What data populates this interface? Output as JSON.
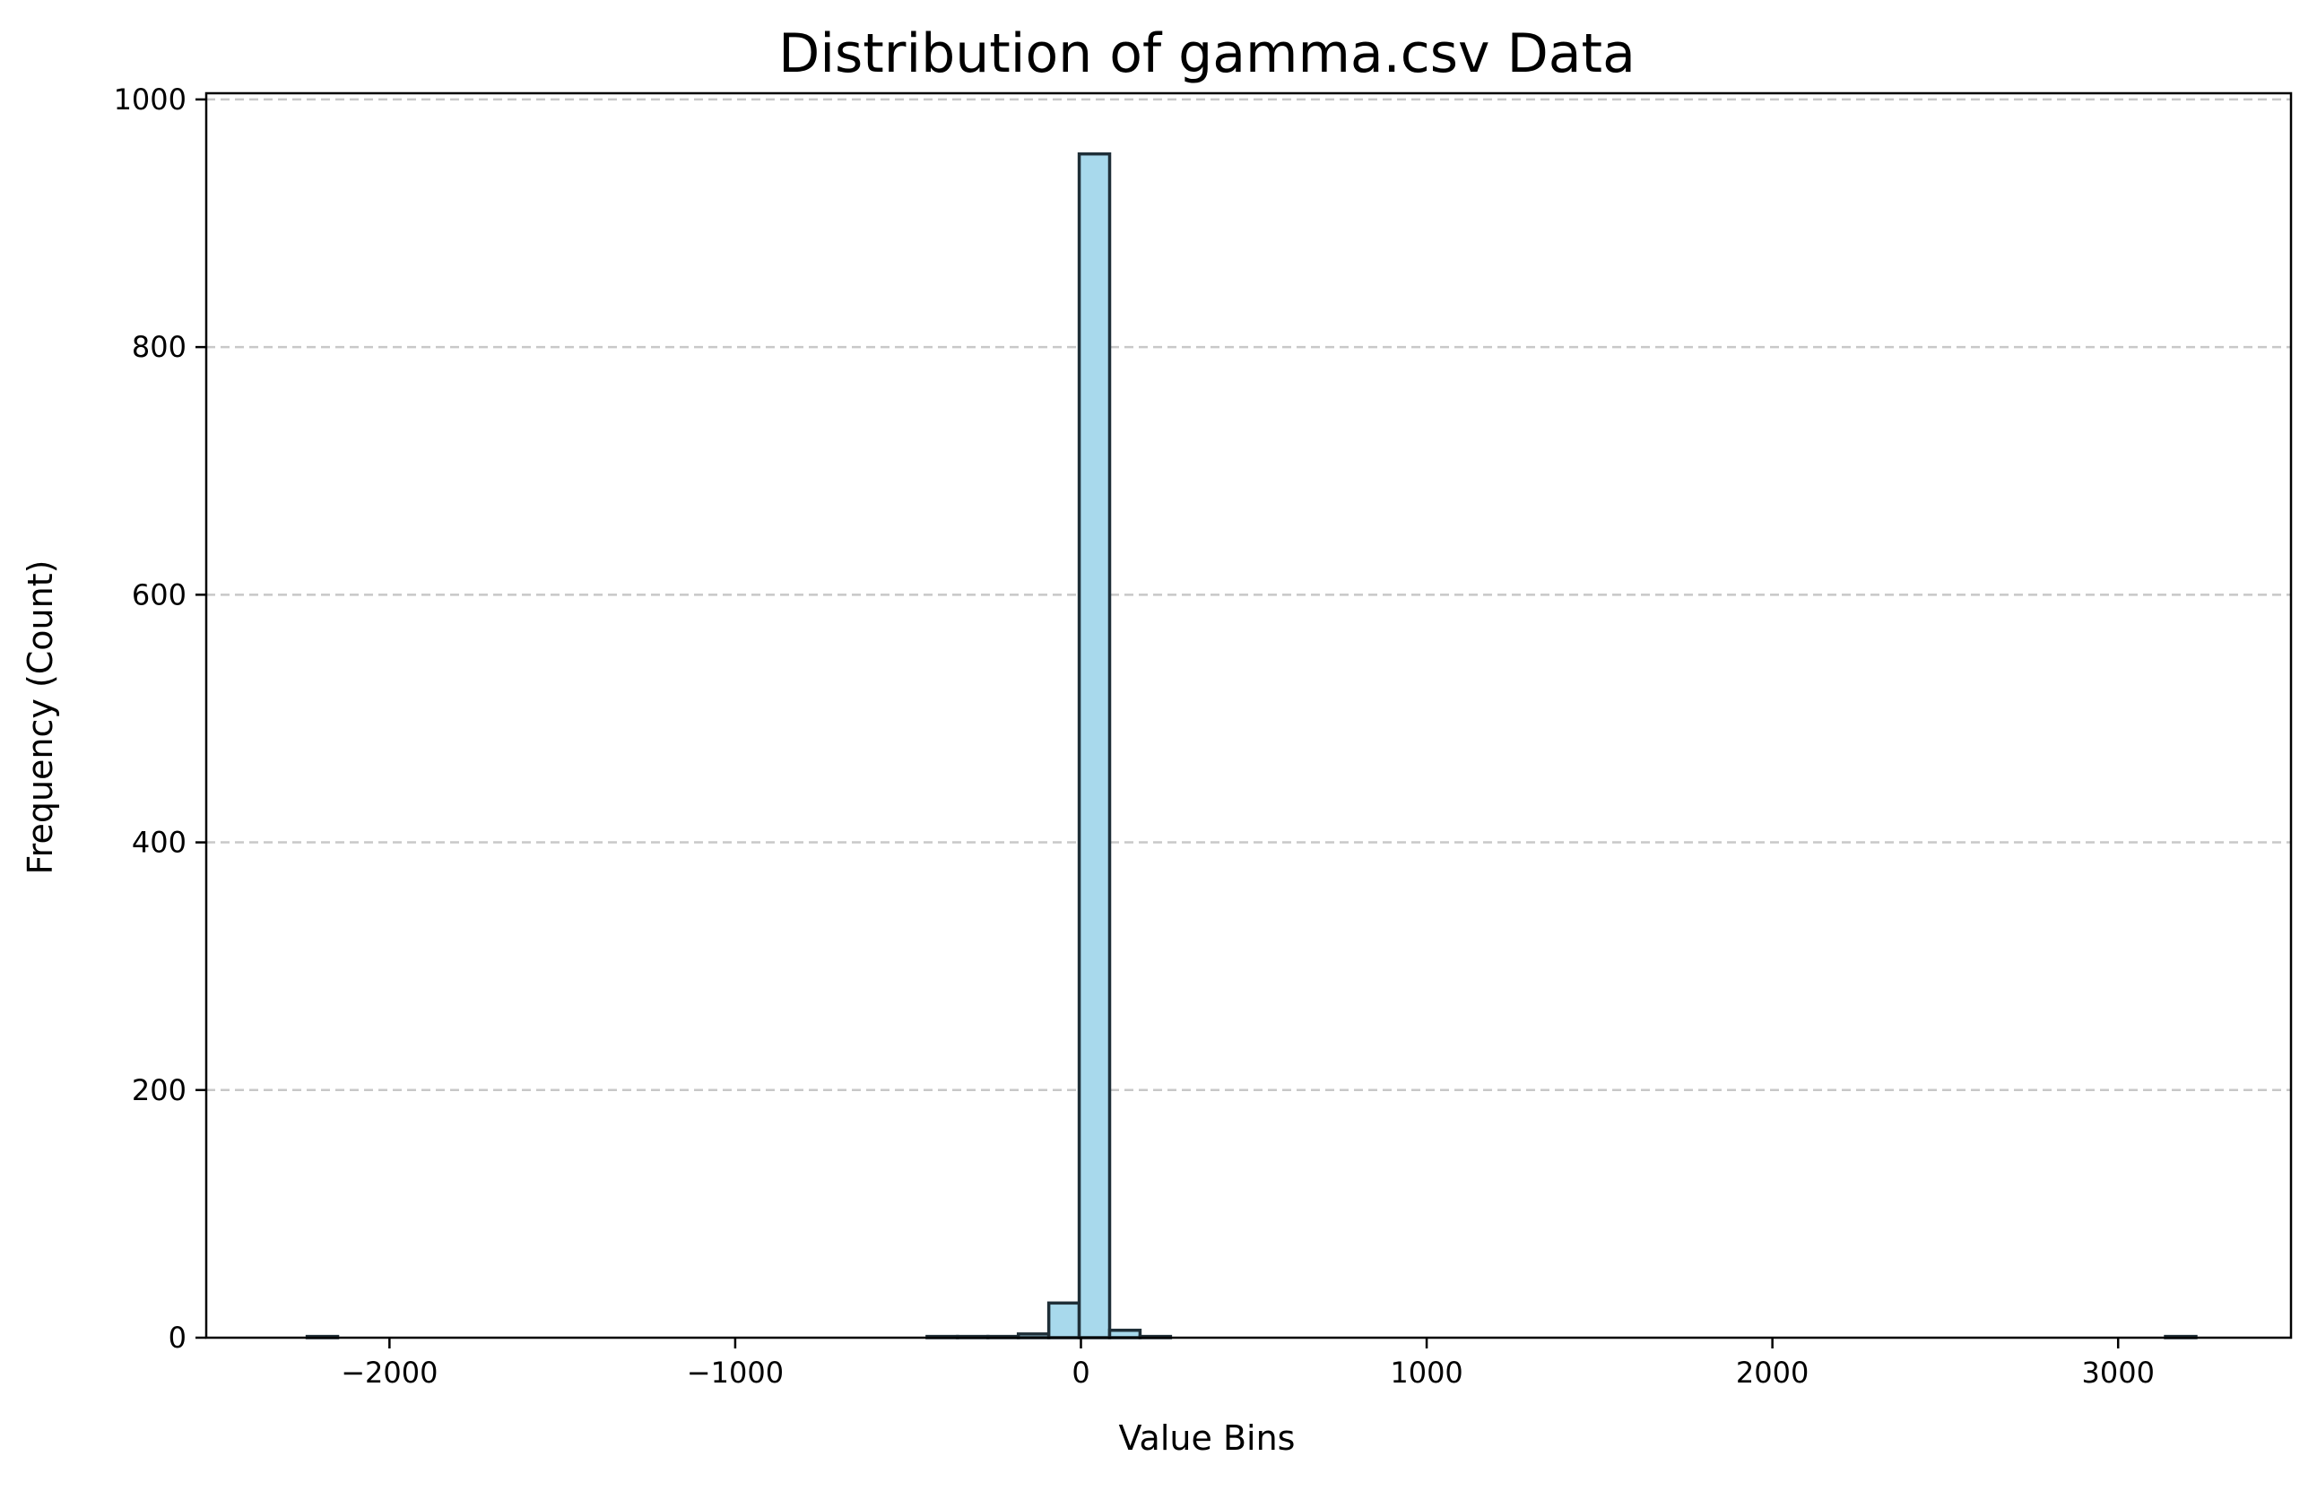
{
  "chart_data": {
    "type": "bar",
    "title": "Distribution of gamma.csv Data",
    "xlabel": "Value Bins",
    "ylabel": "Frequency (Count)",
    "xlim": [
      -2530,
      3500
    ],
    "ylim": [
      0,
      1005
    ],
    "x_ticks": [
      -2000,
      -1000,
      0,
      1000,
      2000,
      3000
    ],
    "x_tick_labels": [
      "−2000",
      "−1000",
      "0",
      "1000",
      "2000",
      "3000"
    ],
    "y_ticks": [
      0,
      200,
      400,
      600,
      800,
      1000
    ],
    "y_tick_labels": [
      "0",
      "200",
      "400",
      "600",
      "800",
      "1000"
    ],
    "grid": "y-axis dashed",
    "legend": "none",
    "bars": [
      {
        "x0": -2238,
        "x1": -2150,
        "count": 1
      },
      {
        "x0": -445,
        "x1": -357,
        "count": 1
      },
      {
        "x0": -357,
        "x1": -269,
        "count": 1
      },
      {
        "x0": -269,
        "x1": -181,
        "count": 1
      },
      {
        "x0": -181,
        "x1": -93,
        "count": 3
      },
      {
        "x0": -93,
        "x1": -5,
        "count": 28
      },
      {
        "x0": -5,
        "x1": 83,
        "count": 956
      },
      {
        "x0": 83,
        "x1": 171,
        "count": 6
      },
      {
        "x0": 171,
        "x1": 259,
        "count": 1
      },
      {
        "x0": 3137,
        "x1": 3225,
        "count": 1
      }
    ],
    "colors": {
      "bar_fill": "#a8d9ec",
      "bar_edge": "#1f2f38",
      "grid": "#c8c8c8",
      "axis": "#000000"
    }
  }
}
